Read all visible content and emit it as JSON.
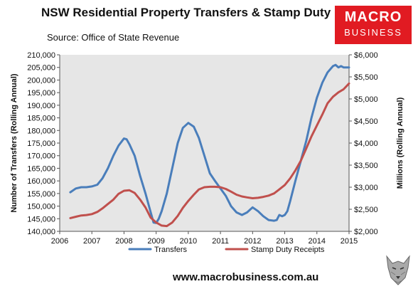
{
  "header": {
    "title": "NSW Residential Property Transfers & Stamp Duty",
    "subtitle": "Source: Office of State Revenue"
  },
  "logo": {
    "line1": "MACRO",
    "line2": "BUSINESS",
    "bg": "#e11b22"
  },
  "footer": {
    "url": "www.macrobusiness.com.au"
  },
  "chart_data": {
    "type": "line",
    "title": "NSW Residential Property Transfers & Stamp Duty",
    "subtitle": "Source: Office of State Revenue",
    "ylabel_left": "Number of Transfers (Rolling Annual)",
    "ylabel_right": "Millions (Rolling Annual)",
    "xlim": [
      2006,
      2015
    ],
    "ylim_left": [
      140000,
      210000
    ],
    "ylim_right": [
      2000,
      6000
    ],
    "x_ticks": [
      2006,
      2007,
      2008,
      2009,
      2010,
      2011,
      2012,
      2013,
      2014,
      2015
    ],
    "x_tick_labels": [
      "2006",
      "2007",
      "2008",
      "2009",
      "2010",
      "2011",
      "2012",
      "2013",
      "2014",
      "2015"
    ],
    "y_left_ticks": [
      140000,
      145000,
      150000,
      155000,
      160000,
      165000,
      170000,
      175000,
      180000,
      185000,
      190000,
      195000,
      200000,
      205000,
      210000
    ],
    "y_left_tick_labels": [
      "140,000",
      "145,000",
      "150,000",
      "155,000",
      "160,000",
      "165,000",
      "170,000",
      "175,000",
      "180,000",
      "185,000",
      "190,000",
      "195,000",
      "200,000",
      "205,000",
      "210,000"
    ],
    "y_right_ticks": [
      2000,
      2500,
      3000,
      3500,
      4000,
      4500,
      5000,
      5500,
      6000
    ],
    "y_right_tick_labels": [
      "$2,000",
      "$2,500",
      "$3,000",
      "$3,500",
      "$4,000",
      "$4,500",
      "$5,000",
      "$5,500",
      "$6,000"
    ],
    "grid": false,
    "plot_background": "#e6e6e6",
    "legend_position": "bottom",
    "series": [
      {
        "name": "Transfers",
        "axis": "left",
        "color": "#4a7ebb",
        "points": [
          [
            2006.33,
            155500
          ],
          [
            2006.5,
            157000
          ],
          [
            2006.67,
            157500
          ],
          [
            2006.83,
            157500
          ],
          [
            2007.0,
            157800
          ],
          [
            2007.17,
            158500
          ],
          [
            2007.33,
            161000
          ],
          [
            2007.5,
            165000
          ],
          [
            2007.67,
            170000
          ],
          [
            2007.83,
            174000
          ],
          [
            2008.0,
            176800
          ],
          [
            2008.08,
            176500
          ],
          [
            2008.17,
            174500
          ],
          [
            2008.33,
            170000
          ],
          [
            2008.5,
            162000
          ],
          [
            2008.67,
            155000
          ],
          [
            2008.83,
            147500
          ],
          [
            2008.92,
            143500
          ],
          [
            2009.0,
            143300
          ],
          [
            2009.08,
            145000
          ],
          [
            2009.17,
            148000
          ],
          [
            2009.33,
            155000
          ],
          [
            2009.5,
            165000
          ],
          [
            2009.67,
            175000
          ],
          [
            2009.83,
            181000
          ],
          [
            2010.0,
            183000
          ],
          [
            2010.17,
            181500
          ],
          [
            2010.33,
            177000
          ],
          [
            2010.5,
            170000
          ],
          [
            2010.67,
            163000
          ],
          [
            2010.83,
            160000
          ],
          [
            2011.0,
            157000
          ],
          [
            2011.17,
            154000
          ],
          [
            2011.33,
            150000
          ],
          [
            2011.5,
            147500
          ],
          [
            2011.67,
            146500
          ],
          [
            2011.83,
            147500
          ],
          [
            2012.0,
            149500
          ],
          [
            2012.17,
            148000
          ],
          [
            2012.33,
            146000
          ],
          [
            2012.5,
            144500
          ],
          [
            2012.67,
            144200
          ],
          [
            2012.75,
            144500
          ],
          [
            2012.83,
            146500
          ],
          [
            2012.92,
            146000
          ],
          [
            2013.0,
            146500
          ],
          [
            2013.08,
            148000
          ],
          [
            2013.17,
            152000
          ],
          [
            2013.33,
            160000
          ],
          [
            2013.5,
            168000
          ],
          [
            2013.67,
            176000
          ],
          [
            2013.83,
            185000
          ],
          [
            2014.0,
            193000
          ],
          [
            2014.17,
            199000
          ],
          [
            2014.33,
            203000
          ],
          [
            2014.5,
            205500
          ],
          [
            2014.58,
            206000
          ],
          [
            2014.67,
            205000
          ],
          [
            2014.75,
            205500
          ],
          [
            2014.83,
            205000
          ],
          [
            2015.0,
            205000
          ]
        ]
      },
      {
        "name": "Stamp Duty Receipts",
        "axis": "right",
        "color": "#c0504d",
        "points": [
          [
            2006.33,
            2300
          ],
          [
            2006.5,
            2330
          ],
          [
            2006.67,
            2360
          ],
          [
            2006.83,
            2370
          ],
          [
            2007.0,
            2390
          ],
          [
            2007.17,
            2440
          ],
          [
            2007.33,
            2520
          ],
          [
            2007.5,
            2620
          ],
          [
            2007.67,
            2720
          ],
          [
            2007.83,
            2850
          ],
          [
            2008.0,
            2920
          ],
          [
            2008.17,
            2930
          ],
          [
            2008.33,
            2870
          ],
          [
            2008.5,
            2720
          ],
          [
            2008.67,
            2540
          ],
          [
            2008.83,
            2310
          ],
          [
            2009.0,
            2200
          ],
          [
            2009.17,
            2130
          ],
          [
            2009.33,
            2120
          ],
          [
            2009.5,
            2200
          ],
          [
            2009.67,
            2350
          ],
          [
            2009.83,
            2530
          ],
          [
            2010.0,
            2690
          ],
          [
            2010.17,
            2830
          ],
          [
            2010.33,
            2950
          ],
          [
            2010.5,
            3000
          ],
          [
            2010.67,
            3010
          ],
          [
            2010.83,
            3010
          ],
          [
            2011.0,
            3000
          ],
          [
            2011.17,
            2960
          ],
          [
            2011.33,
            2900
          ],
          [
            2011.5,
            2830
          ],
          [
            2011.67,
            2790
          ],
          [
            2011.83,
            2770
          ],
          [
            2012.0,
            2750
          ],
          [
            2012.17,
            2760
          ],
          [
            2012.33,
            2780
          ],
          [
            2012.5,
            2810
          ],
          [
            2012.67,
            2860
          ],
          [
            2012.83,
            2950
          ],
          [
            2013.0,
            3050
          ],
          [
            2013.17,
            3200
          ],
          [
            2013.33,
            3380
          ],
          [
            2013.5,
            3600
          ],
          [
            2013.67,
            3880
          ],
          [
            2013.83,
            4150
          ],
          [
            2014.0,
            4400
          ],
          [
            2014.17,
            4650
          ],
          [
            2014.33,
            4900
          ],
          [
            2014.5,
            5050
          ],
          [
            2014.67,
            5150
          ],
          [
            2014.83,
            5220
          ],
          [
            2015.0,
            5350
          ]
        ]
      }
    ]
  }
}
